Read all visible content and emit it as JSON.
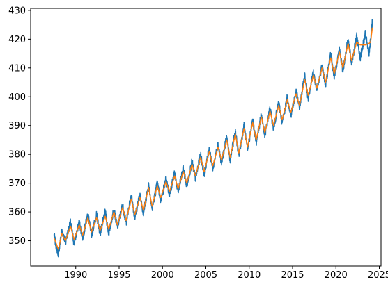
{
  "chart_data": {
    "type": "line",
    "title": "",
    "xlabel": "",
    "ylabel": "",
    "xlim": [
      1984.8,
      2025.2
    ],
    "ylim": [
      341.2,
      430.7
    ],
    "xticks": [
      1990,
      1995,
      2000,
      2005,
      2010,
      2015,
      2020,
      2025
    ],
    "yticks": [
      350,
      360,
      370,
      380,
      390,
      400,
      410,
      420,
      430
    ],
    "grid": false,
    "legend": "none",
    "series": [
      {
        "color": "#1f77b4",
        "style": "noisy-daily",
        "x": [
          1987.5,
          1987.75,
          1988.0,
          1988.4,
          1988.8,
          1989.4,
          1989.8,
          1990.4,
          1990.8,
          1991.4,
          1991.8,
          1992.4,
          1992.8,
          1993.4,
          1993.8,
          1994.4,
          1994.8,
          1995.4,
          1995.8,
          1996.4,
          1996.8,
          1997.4,
          1997.8,
          1998.4,
          1998.8,
          1999.4,
          1999.8,
          2000.4,
          2000.8,
          2001.4,
          2001.8,
          2002.4,
          2002.8,
          2003.4,
          2003.8,
          2004.4,
          2004.8,
          2005.4,
          2005.8,
          2006.4,
          2006.8,
          2007.4,
          2007.8,
          2008.4,
          2008.8,
          2009.4,
          2009.8,
          2010.4,
          2010.8,
          2011.4,
          2011.8,
          2012.4,
          2012.8,
          2013.4,
          2013.8,
          2014.4,
          2014.8,
          2015.4,
          2015.8,
          2016.4,
          2016.8,
          2017.4,
          2017.8,
          2018.4,
          2018.8,
          2019.4,
          2019.8,
          2020.4,
          2020.8,
          2021.4,
          2021.8,
          2022.4,
          2022.8,
          2023.4,
          2023.8,
          2024.2
        ],
        "y": [
          352.0,
          348.0,
          345.5,
          353.5,
          349.5,
          356.5,
          349.0,
          356.5,
          351.0,
          359.5,
          352.0,
          359.0,
          352.5,
          360.0,
          352.5,
          361.0,
          354.5,
          362.5,
          356.0,
          366.0,
          358.0,
          366.0,
          359.5,
          369.5,
          361.0,
          370.0,
          364.0,
          371.5,
          366.0,
          373.5,
          367.0,
          375.0,
          369.0,
          377.5,
          371.5,
          380.0,
          373.0,
          382.0,
          375.0,
          383.5,
          377.0,
          386.0,
          378.0,
          388.0,
          379.5,
          390.0,
          381.5,
          392.0,
          384.0,
          394.0,
          386.5,
          396.0,
          389.0,
          398.0,
          391.0,
          400.0,
          393.5,
          402.0,
          396.0,
          407.5,
          399.5,
          408.5,
          402.0,
          411.0,
          404.0,
          415.0,
          407.0,
          416.5,
          409.0,
          420.0,
          411.5,
          421.0,
          413.5,
          422.0,
          414.5,
          426.0
        ]
      },
      {
        "color": "#ff7f0e",
        "style": "smoothed",
        "x": [
          1987.5,
          1987.75,
          1988.0,
          1988.4,
          1988.8,
          1989.4,
          1989.8,
          1990.4,
          1990.8,
          1991.4,
          1991.8,
          1992.4,
          1992.8,
          1993.4,
          1993.8,
          1994.4,
          1994.8,
          1995.4,
          1995.8,
          1996.4,
          1996.8,
          1997.4,
          1997.8,
          1998.4,
          1998.8,
          1999.4,
          1999.8,
          2000.4,
          2000.8,
          2001.4,
          2001.8,
          2002.4,
          2002.8,
          2003.4,
          2003.8,
          2004.4,
          2004.8,
          2005.4,
          2005.8,
          2006.4,
          2006.8,
          2007.4,
          2007.8,
          2008.4,
          2008.8,
          2009.4,
          2009.8,
          2010.4,
          2010.8,
          2011.4,
          2011.8,
          2012.4,
          2012.8,
          2013.4,
          2013.8,
          2014.4,
          2014.8,
          2015.4,
          2015.8,
          2016.4,
          2016.8,
          2017.4,
          2017.8,
          2018.4,
          2018.8,
          2019.4,
          2019.8,
          2020.4,
          2020.8,
          2021.4,
          2021.8,
          2022.4,
          2022.8,
          2023.0,
          2023.4,
          2023.8,
          2024.0,
          2024.2
        ],
        "y": [
          351.0,
          349.0,
          347.0,
          352.5,
          350.0,
          355.0,
          350.5,
          355.5,
          352.0,
          358.0,
          353.0,
          358.0,
          353.5,
          358.5,
          354.0,
          360.0,
          355.5,
          361.5,
          357.0,
          364.5,
          359.0,
          365.0,
          360.5,
          368.5,
          362.0,
          369.0,
          365.0,
          370.5,
          367.0,
          372.5,
          368.0,
          374.0,
          370.0,
          376.5,
          372.5,
          379.0,
          374.0,
          381.0,
          376.0,
          382.5,
          378.0,
          385.0,
          379.0,
          387.0,
          380.5,
          389.0,
          382.5,
          391.0,
          385.0,
          393.0,
          387.5,
          395.0,
          390.0,
          397.0,
          392.0,
          399.0,
          394.5,
          401.0,
          397.0,
          406.0,
          400.5,
          407.5,
          403.0,
          410.0,
          405.0,
          413.5,
          408.0,
          415.5,
          410.0,
          418.5,
          412.5,
          419.0,
          418.0,
          418.0,
          418.0,
          418.5,
          419.0,
          424.0
        ]
      }
    ]
  }
}
